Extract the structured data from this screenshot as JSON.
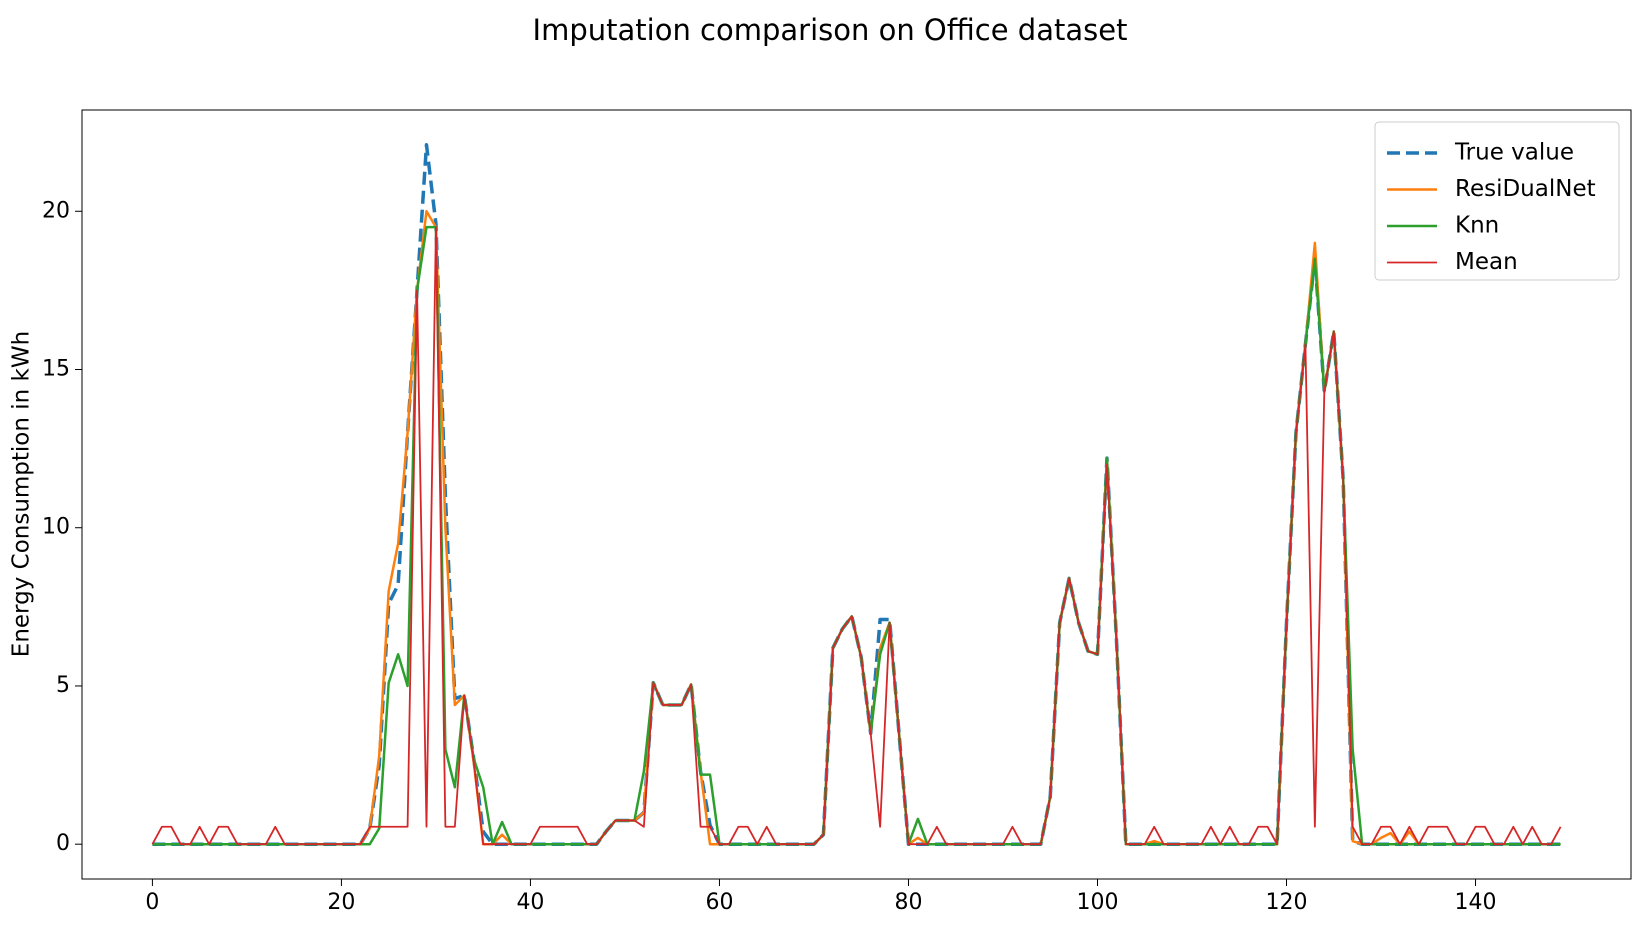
{
  "chart_data": {
    "type": "line",
    "title": "Imputation comparison on Office dataset",
    "y_label": "Energy Consumption in kWh",
    "x": [
      0,
      1,
      2,
      3,
      4,
      5,
      6,
      7,
      8,
      9,
      10,
      11,
      12,
      13,
      14,
      15,
      16,
      17,
      18,
      19,
      20,
      21,
      22,
      23,
      24,
      25,
      26,
      27,
      28,
      29,
      30,
      31,
      32,
      33,
      34,
      35,
      36,
      37,
      38,
      39,
      40,
      41,
      42,
      43,
      44,
      45,
      46,
      47,
      48,
      49,
      50,
      51,
      52,
      53,
      54,
      55,
      56,
      57,
      58,
      59,
      60,
      61,
      62,
      63,
      64,
      65,
      66,
      67,
      68,
      69,
      70,
      71,
      72,
      73,
      74,
      75,
      76,
      77,
      78,
      79,
      80,
      81,
      82,
      83,
      84,
      85,
      86,
      87,
      88,
      89,
      90,
      91,
      92,
      93,
      94,
      95,
      96,
      97,
      98,
      99,
      100,
      101,
      102,
      103,
      104,
      105,
      106,
      107,
      108,
      109,
      110,
      111,
      112,
      113,
      114,
      115,
      116,
      117,
      118,
      119,
      120,
      121,
      122,
      123,
      124,
      125,
      126,
      127,
      128,
      129,
      130,
      131,
      132,
      133,
      134,
      135,
      136,
      137,
      138,
      139,
      140,
      141,
      142,
      143,
      144,
      145,
      146,
      147,
      148,
      149
    ],
    "series": [
      {
        "name": "True value",
        "color": "#1f77b4",
        "dashed": true,
        "width": 3.5,
        "values": [
          0,
          0,
          0,
          0,
          0,
          0,
          0,
          0,
          0,
          0,
          0,
          0,
          0,
          0,
          0,
          0,
          0,
          0,
          0,
          0,
          0,
          0,
          0,
          0.5,
          2.5,
          7.6,
          8.2,
          13,
          17.5,
          22.1,
          19.6,
          11,
          4.6,
          4.7,
          2.7,
          0.4,
          0,
          0,
          0,
          0,
          0,
          0,
          0,
          0,
          0,
          0,
          0,
          0,
          0.4,
          0.75,
          0.75,
          0.75,
          1.0,
          5.1,
          4.4,
          4.4,
          4.4,
          5.05,
          2.3,
          0.6,
          0,
          0,
          0,
          0,
          0,
          0,
          0,
          0,
          0,
          0,
          0,
          0.3,
          6.2,
          6.8,
          7.2,
          5.9,
          3.5,
          7.1,
          7.1,
          3.5,
          0,
          0,
          0,
          0,
          0,
          0,
          0,
          0,
          0,
          0,
          0,
          0,
          0,
          0,
          0,
          1.5,
          7,
          8.4,
          7,
          6.1,
          6.0,
          12.2,
          6.5,
          0,
          0,
          0,
          0,
          0,
          0,
          0,
          0,
          0,
          0,
          0,
          0,
          0,
          0,
          0,
          0,
          0,
          7,
          13,
          15.8,
          18.5,
          14.3,
          16.2,
          11.5,
          0.1,
          0,
          0,
          0,
          0,
          0,
          0,
          0,
          0,
          0,
          0,
          0,
          0,
          0,
          0,
          0,
          0,
          0,
          0,
          0,
          0,
          0,
          0
        ]
      },
      {
        "name": "ResiDualNet",
        "color": "#ff7f0e",
        "dashed": false,
        "width": 2.5,
        "values": [
          0,
          0,
          0,
          0,
          0,
          0,
          0,
          0,
          0,
          0,
          0,
          0,
          0,
          0,
          0,
          0,
          0,
          0,
          0,
          0,
          0,
          0,
          0,
          0.5,
          2.8,
          8,
          9.5,
          13,
          17.5,
          20,
          19.5,
          10,
          4.4,
          4.7,
          2.6,
          0,
          0,
          0.3,
          0,
          0,
          0,
          0,
          0,
          0,
          0,
          0,
          0,
          0,
          0.4,
          0.75,
          0.75,
          0.75,
          1.0,
          5.1,
          4.4,
          4.4,
          4.4,
          5.05,
          2.3,
          0,
          0,
          0,
          0,
          0,
          0,
          0,
          0,
          0,
          0,
          0,
          0,
          0.3,
          6.2,
          6.8,
          7.2,
          5.9,
          3.5,
          6.2,
          7.0,
          3.5,
          0,
          0.2,
          0,
          0,
          0,
          0,
          0,
          0,
          0,
          0,
          0,
          0,
          0,
          0,
          0,
          1.5,
          7,
          8.4,
          7,
          6.1,
          6.0,
          12.2,
          6.5,
          0,
          0,
          0,
          0.1,
          0,
          0,
          0,
          0,
          0,
          0,
          0,
          0,
          0,
          0,
          0,
          0,
          0,
          7,
          13,
          15.8,
          19,
          14.3,
          16.2,
          11.5,
          0.1,
          0,
          0,
          0.2,
          0.35,
          0,
          0.4,
          0,
          0,
          0,
          0,
          0,
          0,
          0,
          0,
          0,
          0,
          0,
          0,
          0,
          0,
          0,
          0
        ]
      },
      {
        "name": "Knn",
        "color": "#2ca02c",
        "dashed": false,
        "width": 2.5,
        "values": [
          0,
          0,
          0,
          0,
          0,
          0,
          0,
          0,
          0,
          0,
          0,
          0,
          0,
          0,
          0,
          0,
          0,
          0,
          0,
          0,
          0,
          0,
          0,
          0,
          0.5,
          5.1,
          6,
          5,
          17.5,
          19.5,
          19.5,
          3,
          1.8,
          4.7,
          2.7,
          1.8,
          0,
          0.7,
          0,
          0,
          0,
          0,
          0,
          0,
          0,
          0,
          0,
          0,
          0.4,
          0.75,
          0.75,
          0.75,
          2.3,
          5.1,
          4.4,
          4.4,
          4.4,
          5.05,
          2.2,
          2.2,
          0,
          0,
          0,
          0,
          0,
          0,
          0,
          0,
          0,
          0,
          0,
          0.3,
          6.2,
          6.8,
          7.2,
          5.9,
          3.5,
          6,
          7,
          3.5,
          0,
          0.8,
          0,
          0,
          0,
          0,
          0,
          0,
          0,
          0,
          0,
          0,
          0,
          0,
          0,
          1.5,
          7,
          8.4,
          7,
          6.1,
          6,
          12.2,
          6.5,
          0,
          0,
          0,
          0,
          0,
          0,
          0,
          0,
          0,
          0,
          0,
          0,
          0,
          0,
          0,
          0,
          0,
          7,
          13,
          15.8,
          18.5,
          14.3,
          16.2,
          11.5,
          3,
          0,
          0,
          0,
          0,
          0,
          0,
          0,
          0,
          0,
          0,
          0,
          0,
          0,
          0,
          0,
          0,
          0,
          0,
          0,
          0,
          0,
          0
        ]
      },
      {
        "name": "Mean",
        "color": "#d62728",
        "dashed": false,
        "width": 1.8,
        "values": [
          0,
          0.55,
          0.55,
          0,
          0,
          0.55,
          0,
          0.55,
          0.55,
          0,
          0,
          0,
          0,
          0.55,
          0,
          0,
          0,
          0,
          0,
          0,
          0,
          0,
          0,
          0.55,
          0.55,
          0.55,
          0.55,
          0.55,
          17.5,
          0.55,
          19.5,
          0.55,
          0.55,
          4.7,
          2.6,
          0,
          0,
          0,
          0,
          0,
          0,
          0.55,
          0.55,
          0.55,
          0.55,
          0.55,
          0,
          0,
          0.4,
          0.75,
          0.75,
          0.75,
          0.55,
          5.1,
          4.4,
          4.4,
          4.4,
          5.05,
          0.55,
          0.55,
          0,
          0,
          0.55,
          0.55,
          0,
          0.55,
          0,
          0,
          0,
          0,
          0,
          0.3,
          6.2,
          6.8,
          7.2,
          5.9,
          3.5,
          0.55,
          7.0,
          3.5,
          0,
          0,
          0,
          0.55,
          0,
          0,
          0,
          0,
          0,
          0,
          0,
          0.55,
          0,
          0,
          0,
          1.5,
          7,
          8.4,
          7,
          6.1,
          6,
          12,
          6.5,
          0,
          0,
          0,
          0.55,
          0,
          0,
          0,
          0,
          0,
          0.55,
          0,
          0.55,
          0,
          0,
          0.55,
          0.55,
          0,
          7,
          13,
          15.8,
          0.55,
          14.3,
          16.2,
          11.5,
          0.55,
          0,
          0,
          0.55,
          0.55,
          0,
          0.55,
          0,
          0.55,
          0.55,
          0.55,
          0,
          0,
          0.55,
          0.55,
          0,
          0,
          0.55,
          0,
          0.55,
          0,
          0,
          0.55
        ]
      }
    ],
    "xlim": [
      -7.45,
      156.45
    ],
    "ylim": [
      -1.1,
      23.2
    ],
    "xticks": [
      0,
      20,
      40,
      60,
      80,
      100,
      120,
      140
    ],
    "yticks": [
      0,
      5,
      10,
      15,
      20
    ],
    "legend": "upper right"
  }
}
